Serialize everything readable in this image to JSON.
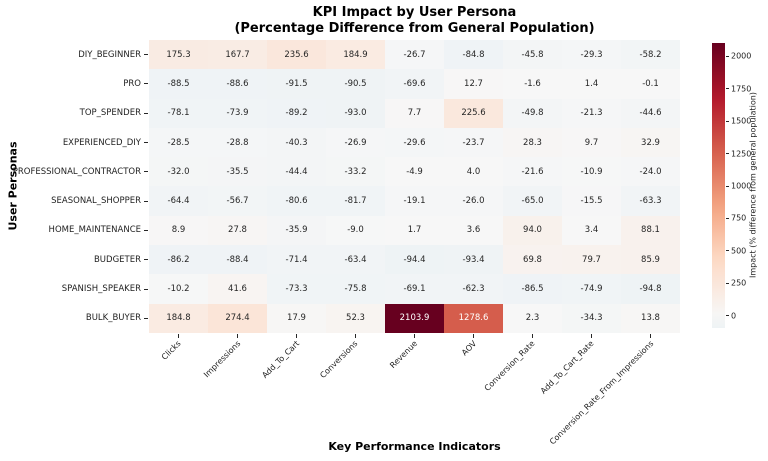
{
  "figure": {
    "title_line1": "KPI Impact by User Persona",
    "title_line2": "(Percentage Difference from General Population)",
    "x_axis_title": "Key Performance Indicators",
    "y_axis_title": "User Personas"
  },
  "chart_data": {
    "type": "heatmap",
    "title": "KPI Impact by User Persona (Percentage Difference from General Population)",
    "xlabel": "Key Performance Indicators",
    "ylabel": "User Personas",
    "x_categories": [
      "Clicks",
      "Impressions",
      "Add_To_Cart",
      "Conversions",
      "Revenue",
      "AOV",
      "Conversion_Rate",
      "Add_To_Cart_Rate",
      "Conversion_Rate_From_Impressions"
    ],
    "y_categories": [
      "DIY_BEGINNER",
      "PRO",
      "TOP_SPENDER",
      "EXPERIENCED_DIY",
      "PROFESSIONAL_CONTRACTOR",
      "SEASONAL_SHOPPER",
      "HOME_MAINTENANCE",
      "BUDGETER",
      "SPANISH_SPEAKER",
      "BULK_BUYER"
    ],
    "values": [
      [
        175.3,
        167.7,
        235.6,
        184.9,
        -26.7,
        -84.8,
        -45.8,
        -29.3,
        -58.2
      ],
      [
        -88.5,
        -88.6,
        -91.5,
        -90.5,
        -69.6,
        12.7,
        -1.6,
        1.4,
        -0.1
      ],
      [
        -78.1,
        -73.9,
        -89.2,
        -93.0,
        7.7,
        225.6,
        -49.8,
        -21.3,
        -44.6
      ],
      [
        -28.5,
        -28.8,
        -40.3,
        -26.9,
        -29.6,
        -23.7,
        28.3,
        9.7,
        32.9
      ],
      [
        -32.0,
        -35.5,
        -44.4,
        -33.2,
        -4.9,
        4.0,
        -21.6,
        -10.9,
        -24.0
      ],
      [
        -64.4,
        -56.7,
        -80.6,
        -81.7,
        -19.1,
        -26.0,
        -65.0,
        -15.5,
        -63.3
      ],
      [
        8.9,
        27.8,
        -35.9,
        -9.0,
        1.7,
        3.6,
        94.0,
        3.4,
        88.1
      ],
      [
        -86.2,
        -88.4,
        -71.4,
        -63.4,
        -94.4,
        -93.4,
        69.8,
        79.7,
        85.9
      ],
      [
        -10.2,
        41.6,
        -73.3,
        -75.8,
        -69.1,
        -62.3,
        -86.5,
        -74.9,
        -94.8
      ],
      [
        184.8,
        274.4,
        17.9,
        52.3,
        2103.9,
        1278.6,
        2.3,
        -34.3,
        13.8
      ]
    ],
    "annotation_decimals": 1,
    "colorbar": {
      "label": "Impact (% difference from general population)",
      "ticks": [
        0,
        250,
        500,
        750,
        1000,
        1250,
        1500,
        1750,
        2000
      ]
    },
    "color_scale": {
      "cmap": "RdBu_r",
      "center": 0,
      "vmin": -94.8,
      "vmax": 2103.9,
      "anchors": [
        [
          0,
          "#053061"
        ],
        [
          0.1,
          "#2166ac"
        ],
        [
          0.2,
          "#4393c3"
        ],
        [
          0.3,
          "#92c5de"
        ],
        [
          0.4,
          "#d1e5f0"
        ],
        [
          0.5,
          "#f7f7f7"
        ],
        [
          0.6,
          "#fddbc7"
        ],
        [
          0.7,
          "#f4a582"
        ],
        [
          0.8,
          "#d6604d"
        ],
        [
          0.9,
          "#b2182b"
        ],
        [
          1,
          "#67001f"
        ]
      ]
    },
    "text_colors": {
      "dark": "#262626",
      "light": "#ffffff"
    }
  }
}
